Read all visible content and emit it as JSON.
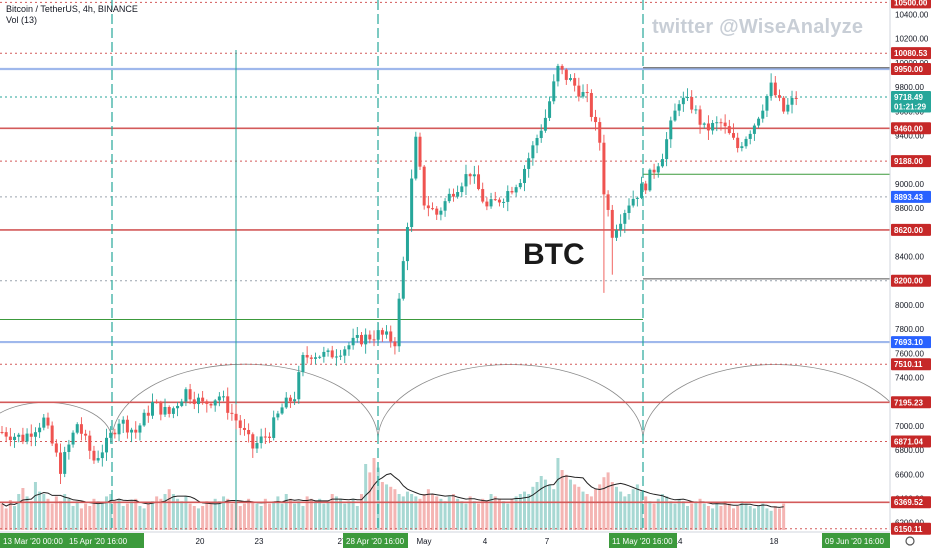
{
  "header": {
    "symbol_line": "Bitcoin / TetherUS, 4h, BINANCE",
    "volume_line": "Vol (13)"
  },
  "watermark": "twitter @WiseAnalyze",
  "annotation": "BTC",
  "colors": {
    "up": "#26a69a",
    "down": "#ef5350",
    "volume_up": "#a7d8d3",
    "volume_down": "#f4b5b3",
    "resistance": "#d35a5a",
    "blue_level": "#9fb8ec",
    "green_level": "#3c9a3c",
    "cycle_arc": "#8a8a8a",
    "current_price": "#26a69a"
  },
  "chart_data": {
    "type": "candlestick",
    "title": "Bitcoin / TetherUS, 4h, BINANCE",
    "y_axis": {
      "ticks": [
        "10400.00",
        "10200.00",
        "10000.00",
        "9800.00",
        "9600.00",
        "9400.00",
        "9200.00",
        "9000.00",
        "8800.00",
        "8600.00",
        "8400.00",
        "8200.00",
        "8000.00",
        "7800.00",
        "7600.00",
        "7400.00",
        "7200.00",
        "7000.00",
        "6800.00",
        "6600.00",
        "6400.00",
        "6200.00"
      ],
      "ylim": [
        6140,
        10520
      ]
    },
    "x_axis": {
      "ticks": [
        "20",
        "23",
        "27",
        "May",
        "4",
        "7",
        "14",
        "18"
      ],
      "highlighted_dates": [
        "13 Mar '20   00:00",
        "15 Apr '20   16:00",
        "28 Apr '20   16:00",
        "11 May '20   16:00",
        "09 Jun '20   16:00"
      ]
    },
    "price_labels": [
      {
        "price": 10500.0,
        "text": "10500.00",
        "style": "red"
      },
      {
        "price": 10080.53,
        "text": "10080.53",
        "style": "red"
      },
      {
        "price": 9950.0,
        "text": "9950.00",
        "style": "red"
      },
      {
        "price": 9718.49,
        "text": "9718.49",
        "style": "current"
      },
      {
        "price": 9640.0,
        "text": "01:21:29",
        "style": "current"
      },
      {
        "price": 9460.0,
        "text": "9460.00",
        "style": "red"
      },
      {
        "price": 9188.0,
        "text": "9188.00",
        "style": "red"
      },
      {
        "price": 8893.43,
        "text": "8893.43",
        "style": "blue"
      },
      {
        "price": 8620.0,
        "text": "8620.00",
        "style": "red"
      },
      {
        "price": 8200.0,
        "text": "8200.00",
        "style": "red"
      },
      {
        "price": 7693.1,
        "text": "7693.10",
        "style": "blue"
      },
      {
        "price": 7510.11,
        "text": "7510.11",
        "style": "red"
      },
      {
        "price": 7195.23,
        "text": "7195.23",
        "style": "red"
      },
      {
        "price": 6871.04,
        "text": "6871.04",
        "style": "red"
      },
      {
        "price": 6369.52,
        "text": "6369.52",
        "style": "red"
      },
      {
        "price": 6150.11,
        "text": "6150.11",
        "style": "red"
      }
    ],
    "solid_levels": [
      {
        "price": 9950,
        "color": "blue"
      },
      {
        "price": 9460,
        "color": "red"
      },
      {
        "price": 8620,
        "color": "red"
      },
      {
        "price": 7693,
        "color": "blue"
      },
      {
        "price": 7195,
        "color": "red"
      },
      {
        "price": 6369,
        "color": "red"
      }
    ],
    "dotted_levels": [
      {
        "price": 10500,
        "color": "red"
      },
      {
        "price": 10080,
        "color": "red"
      },
      {
        "price": 9718,
        "color": "green"
      },
      {
        "price": 9188,
        "color": "red"
      },
      {
        "price": 8893,
        "color": "gray"
      },
      {
        "price": 8200,
        "color": "gray"
      },
      {
        "price": 7510,
        "color": "red"
      },
      {
        "price": 6871,
        "color": "red"
      },
      {
        "price": 6150,
        "color": "red"
      }
    ],
    "cycle_arcs": 3,
    "path": [
      [
        0,
        6950
      ],
      [
        5,
        6900
      ],
      [
        10,
        7050
      ],
      [
        14,
        6650
      ],
      [
        18,
        7020
      ],
      [
        22,
        6720
      ],
      [
        25,
        6850
      ],
      [
        28,
        7050
      ],
      [
        32,
        6950
      ],
      [
        36,
        7180
      ],
      [
        40,
        7100
      ],
      [
        44,
        7290
      ],
      [
        48,
        7180
      ],
      [
        52,
        7250
      ],
      [
        56,
        7050
      ],
      [
        60,
        6820
      ],
      [
        64,
        6950
      ],
      [
        67,
        7150
      ],
      [
        70,
        7250
      ],
      [
        72,
        7550
      ],
      [
        74,
        7600
      ],
      [
        78,
        7580
      ],
      [
        82,
        7650
      ],
      [
        86,
        7720
      ],
      [
        90,
        7760
      ],
      [
        94,
        7700
      ],
      [
        96,
        8350
      ],
      [
        99,
        9350
      ],
      [
        101,
        8850
      ],
      [
        104,
        8750
      ],
      [
        108,
        8950
      ],
      [
        112,
        9100
      ],
      [
        116,
        8800
      ],
      [
        120,
        8900
      ],
      [
        124,
        9050
      ],
      [
        127,
        9300
      ],
      [
        130,
        9550
      ],
      [
        133,
        9950
      ],
      [
        136,
        9850
      ],
      [
        140,
        9700
      ],
      [
        143,
        9350
      ],
      [
        144,
        8950
      ],
      [
        146,
        8600
      ],
      [
        150,
        8850
      ],
      [
        154,
        9000
      ],
      [
        158,
        9250
      ],
      [
        162,
        9700
      ],
      [
        165,
        9650
      ],
      [
        168,
        9450
      ],
      [
        172,
        9500
      ],
      [
        176,
        9300
      ],
      [
        180,
        9500
      ],
      [
        184,
        9800
      ],
      [
        187,
        9600
      ],
      [
        190,
        9718
      ]
    ],
    "volume": {
      "max": 100,
      "values": [
        22,
        18,
        25,
        20,
        30,
        35,
        28,
        24,
        40,
        32,
        30,
        26,
        22,
        28,
        24,
        30,
        26,
        20,
        24,
        18,
        22,
        20,
        26,
        24,
        22,
        28,
        30,
        24,
        26,
        20,
        22,
        24,
        26,
        20,
        18,
        22,
        24,
        28,
        26,
        30,
        34,
        30,
        26,
        24,
        28,
        22,
        20,
        18,
        20,
        24,
        22,
        26,
        24,
        28,
        26,
        22,
        24,
        20,
        22,
        26,
        24,
        22,
        20,
        26,
        22,
        24,
        28,
        22,
        30,
        26,
        22,
        24,
        20,
        28,
        26,
        24,
        26,
        22,
        24,
        30,
        28,
        26,
        22,
        24,
        26,
        20,
        30,
        55,
        48,
        60,
        52,
        40,
        38,
        36,
        34,
        30,
        28,
        32,
        30,
        28,
        26,
        30,
        34,
        30,
        28,
        26,
        24,
        28,
        30,
        26,
        24,
        22,
        28,
        24,
        22,
        26,
        24,
        30,
        28,
        26,
        24,
        22,
        26,
        28,
        30,
        32,
        30,
        36,
        40,
        45,
        42,
        38,
        34,
        60,
        50,
        46,
        42,
        38,
        36,
        32,
        30,
        28,
        34,
        38,
        44,
        48,
        40,
        36,
        32,
        28,
        30,
        34,
        38,
        32,
        28,
        24,
        22,
        26,
        30,
        28,
        24,
        22,
        26,
        24,
        20,
        22,
        24,
        26,
        22,
        20,
        18,
        22,
        20,
        24,
        22,
        18,
        20,
        24,
        22,
        20,
        18,
        20,
        22,
        18,
        16,
        20,
        18,
        22
      ]
    }
  }
}
